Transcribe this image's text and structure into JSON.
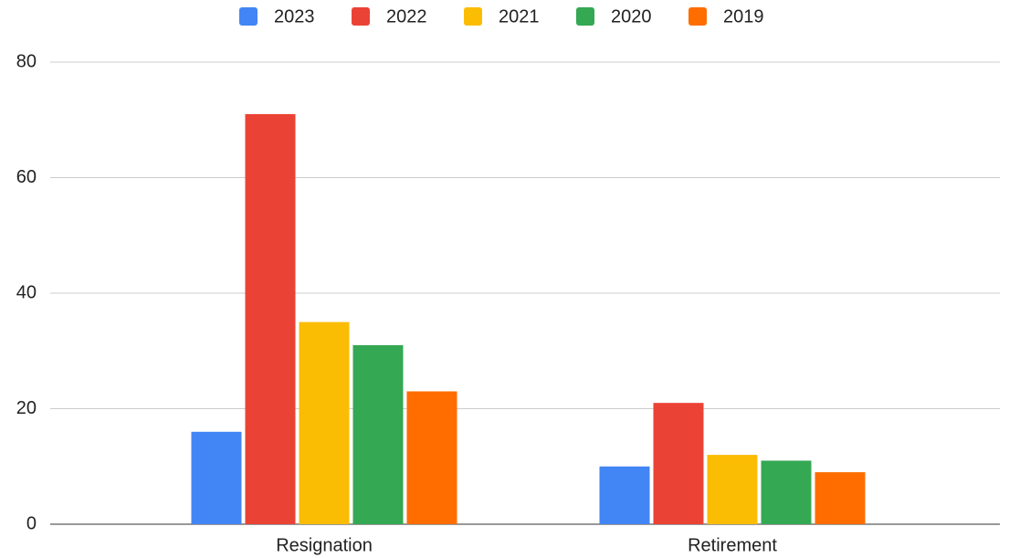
{
  "chart_data": {
    "type": "bar",
    "categories": [
      "Resignation",
      "Retirement"
    ],
    "series": [
      {
        "name": "2023",
        "color": "#4285f4",
        "values": [
          16,
          10
        ]
      },
      {
        "name": "2022",
        "color": "#ea4335",
        "values": [
          71,
          21
        ]
      },
      {
        "name": "2021",
        "color": "#fbbc04",
        "values": [
          35,
          12
        ]
      },
      {
        "name": "2020",
        "color": "#34a853",
        "values": [
          31,
          11
        ]
      },
      {
        "name": "2019",
        "color": "#ff6d01",
        "values": [
          23,
          9
        ]
      }
    ],
    "ylim": [
      0,
      80
    ],
    "yticks": [
      0,
      20,
      40,
      60,
      80
    ],
    "grid": true,
    "legend": "top"
  }
}
